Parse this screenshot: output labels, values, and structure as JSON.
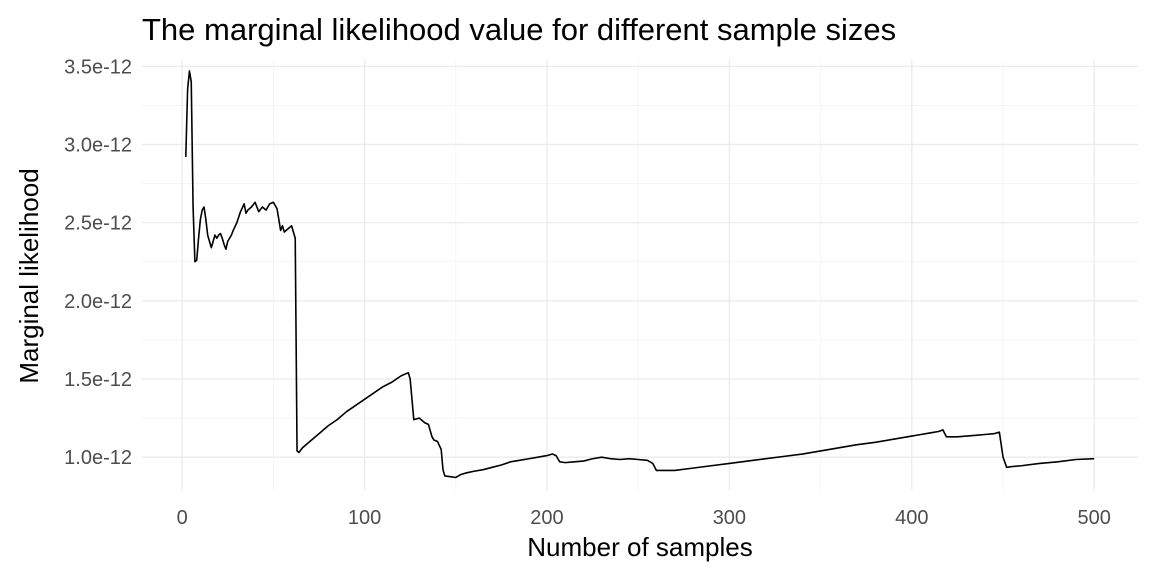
{
  "chart_data": {
    "type": "line",
    "title": "The marginal likelihood value for different sample sizes",
    "xlabel": "Number of samples",
    "ylabel": "Marginal likelihood",
    "xlim": [
      -22,
      524
    ],
    "ylim": [
      7.9e-13,
      3.54e-12
    ],
    "x_ticks": [
      0,
      100,
      200,
      300,
      400,
      500
    ],
    "x_tick_labels": [
      "0",
      "100",
      "200",
      "300",
      "400",
      "500"
    ],
    "y_ticks": [
      1e-12,
      1.5e-12,
      2e-12,
      2.5e-12,
      3e-12,
      3.5e-12
    ],
    "y_tick_labels": [
      "1.0e-12",
      "1.5e-12",
      "2.0e-12",
      "2.5e-12",
      "3.0e-12",
      "3.5e-12"
    ],
    "grid": true,
    "colors": {
      "line": "#000000",
      "grid": "#ebebeb"
    },
    "series": [
      {
        "x": [
          2,
          3,
          4,
          5,
          6,
          7,
          8,
          9,
          10,
          11,
          12,
          13,
          14,
          15,
          16,
          17,
          18,
          19,
          20,
          21,
          22,
          23,
          24,
          25,
          26,
          27,
          28,
          30,
          32,
          34,
          35,
          36,
          38,
          40,
          42,
          44,
          46,
          48,
          50,
          52,
          54,
          55,
          56,
          58,
          60,
          62,
          63,
          64,
          66,
          68,
          70,
          75,
          80,
          85,
          90,
          95,
          100,
          105,
          110,
          115,
          120,
          122,
          124,
          125,
          127,
          130,
          133,
          135,
          137,
          138,
          140,
          142,
          143,
          144,
          147,
          150,
          153,
          156,
          160,
          165,
          170,
          175,
          180,
          185,
          190,
          195,
          200,
          203,
          205,
          207,
          210,
          215,
          220,
          225,
          230,
          235,
          240,
          245,
          250,
          255,
          258,
          260,
          265,
          270,
          280,
          290,
          300,
          310,
          320,
          330,
          340,
          350,
          360,
          370,
          380,
          390,
          400,
          405,
          410,
          415,
          417,
          419,
          425,
          430,
          435,
          440,
          445,
          448,
          450,
          452,
          455,
          460,
          470,
          480,
          490,
          500
        ],
        "y": [
          2.92e-12,
          3.35e-12,
          3.47e-12,
          3.4e-12,
          2.6e-12,
          2.25e-12,
          2.26e-12,
          2.4e-12,
          2.52e-12,
          2.58e-12,
          2.6e-12,
          2.52e-12,
          2.42e-12,
          2.38e-12,
          2.34e-12,
          2.38e-12,
          2.42e-12,
          2.4e-12,
          2.42e-12,
          2.43e-12,
          2.4e-12,
          2.36e-12,
          2.33e-12,
          2.38e-12,
          2.4e-12,
          2.42e-12,
          2.45e-12,
          2.5e-12,
          2.57e-12,
          2.62e-12,
          2.56e-12,
          2.58e-12,
          2.6e-12,
          2.63e-12,
          2.57e-12,
          2.6e-12,
          2.58e-12,
          2.62e-12,
          2.63e-12,
          2.59e-12,
          2.45e-12,
          2.48e-12,
          2.44e-12,
          2.46e-12,
          2.48e-12,
          2.4e-12,
          1.04e-12,
          1.03e-12,
          1.06e-12,
          1.08e-12,
          1.1e-12,
          1.15e-12,
          1.2e-12,
          1.24e-12,
          1.29e-12,
          1.33e-12,
          1.37e-12,
          1.41e-12,
          1.45e-12,
          1.48e-12,
          1.52e-12,
          1.53e-12,
          1.54e-12,
          1.5e-12,
          1.24e-12,
          1.25e-12,
          1.22e-12,
          1.21e-12,
          1.13e-12,
          1.11e-12,
          1.1e-12,
          1.05e-12,
          9.2e-13,
          8.8e-13,
          8.75e-13,
          8.7e-13,
          8.9e-13,
          9e-13,
          9.1e-13,
          9.2e-13,
          9.35e-13,
          9.5e-13,
          9.7e-13,
          9.8e-13,
          9.9e-13,
          1e-12,
          1.01e-12,
          1.02e-12,
          1.01e-12,
          9.7e-13,
          9.65e-13,
          9.7e-13,
          9.75e-13,
          9.9e-13,
          1e-12,
          9.9e-13,
          9.85e-13,
          9.9e-13,
          9.85e-13,
          9.8e-13,
          9.6e-13,
          9.15e-13,
          9.15e-13,
          9.15e-13,
          9.3e-13,
          9.45e-13,
          9.6e-13,
          9.75e-13,
          9.9e-13,
          1.005e-12,
          1.02e-12,
          1.04e-12,
          1.06e-12,
          1.08e-12,
          1.095e-12,
          1.115e-12,
          1.135e-12,
          1.145e-12,
          1.155e-12,
          1.165e-12,
          1.175e-12,
          1.13e-12,
          1.13e-12,
          1.135e-12,
          1.14e-12,
          1.145e-12,
          1.15e-12,
          1.16e-12,
          1e-12,
          9.35e-13,
          9.4e-13,
          9.45e-13,
          9.6e-13,
          9.7e-13,
          9.85e-13,
          9.9e-13
        ]
      }
    ]
  }
}
